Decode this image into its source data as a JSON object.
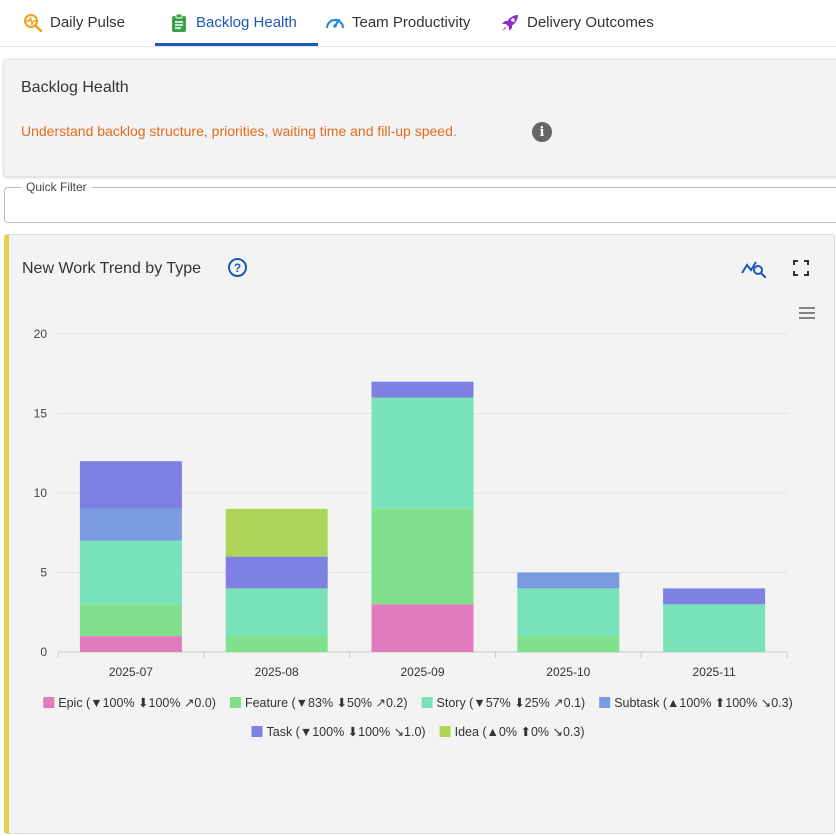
{
  "tabs": [
    {
      "label": "Daily Pulse",
      "icon": "pulse-search-icon",
      "active": false
    },
    {
      "label": "Backlog Health",
      "icon": "clipboard-icon",
      "active": true
    },
    {
      "label": "Team Productivity",
      "icon": "speedometer-icon",
      "active": false
    },
    {
      "label": "Delivery Outcomes",
      "icon": "rocket-icon",
      "active": false
    }
  ],
  "header": {
    "title": "Backlog Health",
    "description": "Understand backlog structure, priorities, waiting time and fill-up speed.",
    "info_icon": "info-icon"
  },
  "filter": {
    "legend": "Quick Filter",
    "value": ""
  },
  "chart_card": {
    "title": "New Work Trend by Type",
    "help_icon": "help-icon",
    "trend_icon": "trend-analysis-icon",
    "fullscreen_icon": "fullscreen-icon",
    "menu_icon": "hamburger-menu-icon"
  },
  "colors": {
    "accent": "#1d57b8",
    "description": "#e06b1f",
    "card_border": "#e0cf55"
  },
  "chart_data": {
    "type": "bar",
    "stacked": true,
    "categories": [
      "2025-07",
      "2025-08",
      "2025-09",
      "2025-10",
      "2025-11"
    ],
    "ylim": [
      0,
      20
    ],
    "yticks": [
      0,
      5,
      10,
      15,
      20
    ],
    "grid": true,
    "legend_position": "bottom",
    "series": [
      {
        "name": "Epic",
        "legend_label": "Epic (▼100% ⬇100% ↗0.0)",
        "color": "#e17bbe",
        "values": [
          1,
          0,
          3,
          0,
          0
        ]
      },
      {
        "name": "Feature",
        "legend_label": "Feature (▼83% ⬇50% ↗0.2)",
        "color": "#80e08c",
        "values": [
          2,
          1,
          6,
          1,
          0
        ]
      },
      {
        "name": "Story",
        "legend_label": "Story (▼57% ⬇25% ↗0.1)",
        "color": "#7ae2b8",
        "values": [
          4,
          3,
          7,
          3,
          3
        ]
      },
      {
        "name": "Subtask",
        "legend_label": "Subtask (▲100% ⬆100% ↘0.3)",
        "color": "#7b9be1",
        "values": [
          2,
          0,
          0,
          1,
          0
        ]
      },
      {
        "name": "Task",
        "legend_label": "Task (▼100% ⬇100% ↘1.0)",
        "color": "#7f81e2",
        "values": [
          3,
          2,
          1,
          0,
          1
        ]
      },
      {
        "name": "Idea",
        "legend_label": "Idea (▲0% ⬆0% ↘0.3)",
        "color": "#aed55a",
        "values": [
          0,
          3,
          0,
          0,
          0
        ]
      }
    ]
  }
}
